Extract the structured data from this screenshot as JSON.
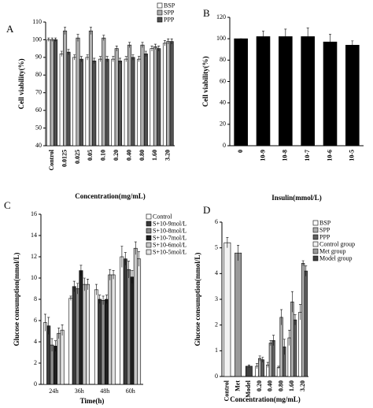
{
  "chart_data": [
    {
      "type": "bar",
      "label": "A",
      "ylabel": "Cell viability(%)",
      "xlabel": "Concentration(mg/mL)",
      "categories": [
        "Control",
        "0.0125",
        "0.025",
        "0.05",
        "0.10",
        "0.20",
        "0.40",
        "0.80",
        "1.60",
        "3.20"
      ],
      "series": [
        {
          "name": "BSP",
          "color": "#ffffff",
          "values": [
            100,
            92,
            90,
            90,
            89,
            89,
            89,
            89,
            95,
            98
          ],
          "errors": [
            1,
            1.5,
            1.5,
            1.5,
            1.5,
            1.5,
            1.5,
            1.5,
            1.5,
            1.5
          ]
        },
        {
          "name": "SPP",
          "color": "#b0b0b0",
          "values": [
            100,
            105,
            101,
            105,
            101,
            95,
            97,
            97,
            96,
            99
          ],
          "errors": [
            1,
            2,
            2,
            2,
            1.5,
            1.5,
            1.5,
            1.5,
            1.5,
            1.5
          ]
        },
        {
          "name": "PPP",
          "color": "#505050",
          "values": [
            100,
            93,
            89,
            88,
            89,
            88,
            90,
            92,
            95,
            99
          ],
          "errors": [
            1,
            1.5,
            1.5,
            1.5,
            1.5,
            1.5,
            1.5,
            1.5,
            1.5,
            1.5
          ]
        }
      ],
      "ylim": [
        40,
        110
      ],
      "yticks": [
        40,
        50,
        60,
        70,
        80,
        90,
        100,
        110
      ]
    },
    {
      "type": "bar",
      "label": "B",
      "ylabel": "Cell viability(%)",
      "xlabel": "Insulin(mmol/L)",
      "categories": [
        "0",
        "10-9",
        "10-8",
        "10-7",
        "10-6",
        "10-5"
      ],
      "values": [
        100,
        102,
        102,
        102,
        97,
        94
      ],
      "errors": [
        0,
        5,
        7,
        8,
        7,
        4
      ],
      "color": "#000000",
      "ylim": [
        0,
        120
      ],
      "yticks": [
        0,
        20,
        40,
        60,
        80,
        100,
        120
      ]
    },
    {
      "type": "bar",
      "label": "C",
      "ylabel": "Glucose consumption(mmol/L)",
      "xlabel": "Time(h)",
      "categories": [
        "24h",
        "36h",
        "48h",
        "60h"
      ],
      "series": [
        {
          "name": "Control",
          "color": "#ffffff",
          "values": [
            5.8,
            8.1,
            8.9,
            12.0
          ],
          "errors": [
            0.8,
            0.2,
            0.5,
            1.0
          ]
        },
        {
          "name": "S+10-9mol/L",
          "color": "#3a3a3a",
          "values": [
            5.5,
            9.2,
            8.0,
            11.8
          ],
          "errors": [
            0.8,
            0.5,
            0.4,
            0.6
          ]
        },
        {
          "name": "S+10-8mol/L",
          "color": "#8a8a8a",
          "values": [
            3.7,
            9.0,
            7.9,
            10.8
          ],
          "errors": [
            0.6,
            0.5,
            0.4,
            0.8
          ]
        },
        {
          "name": "S+10-7mol/L",
          "color": "#202020",
          "values": [
            3.6,
            10.7,
            8.0,
            10.1
          ],
          "errors": [
            0.5,
            0.5,
            0.4,
            0.6
          ]
        },
        {
          "name": "S+10-6mol/L",
          "color": "#c8c8c8",
          "values": [
            4.8,
            9.4,
            10.3,
            12.8
          ],
          "errors": [
            0.5,
            0.6,
            0.5,
            0.6
          ]
        },
        {
          "name": "S+10-5mol/L",
          "color": "#e4e4e4",
          "values": [
            5.1,
            9.4,
            10.3,
            11.8
          ],
          "errors": [
            0.5,
            0.5,
            0.4,
            0.7
          ]
        }
      ],
      "ylim": [
        0,
        16
      ],
      "yticks": [
        0,
        2,
        4,
        6,
        8,
        10,
        12,
        14,
        16
      ]
    },
    {
      "type": "bar",
      "label": "D",
      "ylabel": "Glucose consumption(mmol/L)",
      "xlabel": "Concentration(mg/mL)",
      "categories": [
        "Control",
        "Met",
        "Model",
        "0.20",
        "0.40",
        "0.80",
        "1.60",
        "3.20"
      ],
      "series": [
        {
          "name": "BSP",
          "color": "#ffffff",
          "values": [
            null,
            null,
            null,
            0.4,
            0.45,
            0.35,
            1.5,
            2.5
          ],
          "errors": [
            null,
            null,
            null,
            0.1,
            0.1,
            0.05,
            0.3,
            0.3
          ]
        },
        {
          "name": "SPP",
          "color": "#b0b0b0",
          "values": [
            null,
            null,
            null,
            0.7,
            1.3,
            2.3,
            2.9,
            4.4
          ],
          "errors": [
            null,
            null,
            null,
            0.1,
            0.1,
            0.3,
            0.4,
            0.1
          ]
        },
        {
          "name": "PPP",
          "color": "#606060",
          "values": [
            null,
            null,
            null,
            0.65,
            1.4,
            1.15,
            2.2,
            4.1
          ],
          "errors": [
            null,
            null,
            null,
            0.1,
            0.2,
            0.3,
            0.2,
            0.2
          ]
        },
        {
          "name": "Control group",
          "color": "#f2f2f2",
          "values": [
            5.2,
            null,
            null,
            null,
            null,
            null,
            null,
            null
          ],
          "errors": [
            0.2,
            null,
            null,
            null,
            null,
            null,
            null,
            null
          ]
        },
        {
          "name": "Met group",
          "color": "#9a9a9a",
          "values": [
            null,
            4.8,
            null,
            null,
            null,
            null,
            null,
            null
          ],
          "errors": [
            null,
            0.3,
            null,
            null,
            null,
            null,
            null,
            null
          ]
        },
        {
          "name": "Model group",
          "color": "#404040",
          "values": [
            null,
            null,
            0.4,
            null,
            null,
            null,
            null,
            null
          ],
          "errors": [
            null,
            null,
            0.05,
            null,
            null,
            null,
            null,
            null
          ]
        }
      ],
      "ylim": [
        0,
        6
      ],
      "yticks": [
        0,
        1,
        2,
        3,
        4,
        5,
        6
      ]
    }
  ]
}
